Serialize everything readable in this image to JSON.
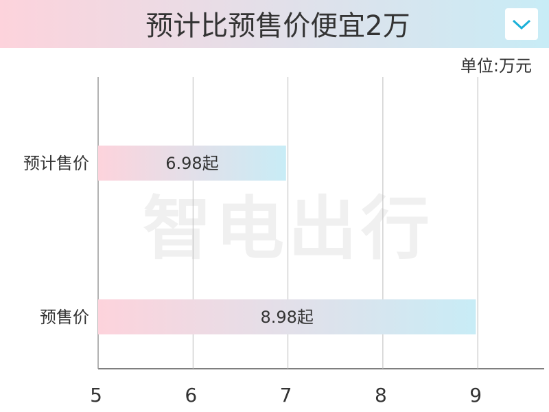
{
  "chart_data": {
    "type": "hbar",
    "title": "预计比预售价便宜2万",
    "unit_label": "单位:万元",
    "watermark": "智电出行",
    "categories": [
      "预计售价",
      "预售价"
    ],
    "values": [
      6.98,
      8.98
    ],
    "value_labels": [
      "6.98起",
      "8.98起"
    ],
    "colors": [
      "#fdd3dc",
      "#c8ecf6"
    ],
    "xlim": [
      5,
      9.7
    ],
    "xticks": [
      5,
      6,
      7,
      8,
      9
    ],
    "grid": true
  }
}
